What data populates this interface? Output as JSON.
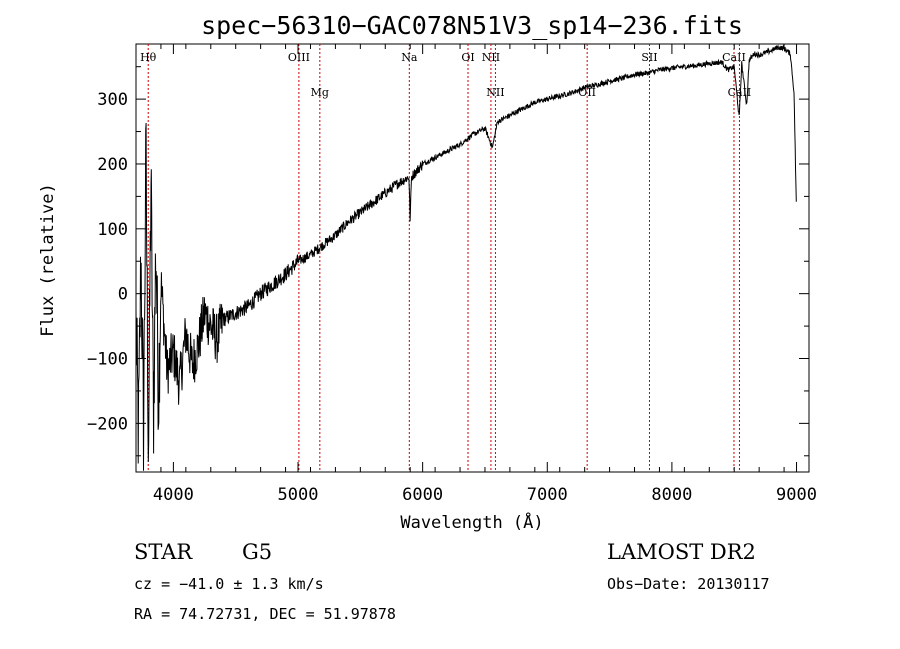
{
  "chart_data": {
    "type": "line",
    "title": "spec−56310−GAC078N51V3_sp14−236.fits",
    "xlabel": "Wavelength (Å)",
    "ylabel": "Flux (relative)",
    "xlim": [
      3700,
      9100
    ],
    "ylim": [
      -275,
      385
    ],
    "x_ticks": [
      4000,
      5000,
      6000,
      7000,
      8000,
      9000
    ],
    "y_ticks": [
      -200,
      -100,
      0,
      100,
      200,
      300
    ],
    "y_tick_labels": [
      "−200",
      "−100",
      "0",
      "100",
      "200",
      "300"
    ],
    "series": [
      {
        "color": "#000000",
        "x": [
          3700,
          3720,
          3740,
          3760,
          3780,
          3800,
          3820,
          3840,
          3860,
          3880,
          3900,
          3950,
          4000,
          4050,
          4100,
          4150,
          4200,
          4250,
          4300,
          4350,
          4400,
          4500,
          4600,
          4700,
          4800,
          4900,
          5000,
          5100,
          5200,
          5300,
          5400,
          5500,
          5600,
          5700,
          5800,
          5890,
          5900,
          5910,
          6000,
          6100,
          6200,
          6300,
          6400,
          6500,
          6560,
          6600,
          6700,
          6800,
          6900,
          7000,
          7100,
          7200,
          7300,
          7400,
          7500,
          7600,
          7700,
          7800,
          7900,
          8000,
          8100,
          8200,
          8300,
          8400,
          8450,
          8500,
          8540,
          8560,
          8600,
          8620,
          8660,
          8700,
          8800,
          8850,
          8900,
          8950,
          8980,
          9000
        ],
        "y": [
          -50,
          -220,
          60,
          -210,
          220,
          -250,
          180,
          -190,
          80,
          -160,
          20,
          -120,
          -90,
          -140,
          -60,
          -110,
          -80,
          -30,
          -50,
          -70,
          -40,
          -30,
          -20,
          0,
          15,
          30,
          50,
          60,
          75,
          90,
          110,
          125,
          140,
          155,
          170,
          180,
          110,
          180,
          200,
          210,
          220,
          230,
          245,
          255,
          225,
          265,
          275,
          285,
          295,
          300,
          305,
          310,
          318,
          322,
          328,
          332,
          338,
          340,
          345,
          348,
          350,
          352,
          355,
          357,
          345,
          350,
          270,
          355,
          290,
          360,
          370,
          368,
          375,
          380,
          378,
          370,
          310,
          120
        ]
      }
    ],
    "lines": [
      {
        "name": "Hθ",
        "x": 3798,
        "row": 0
      },
      {
        "name": "OIII",
        "x": 5007,
        "row": 0
      },
      {
        "name": "Mg",
        "x": 5175,
        "row": 1
      },
      {
        "name": "Na",
        "x": 5893,
        "row": 0
      },
      {
        "name": "OI",
        "x": 6364,
        "row": 0
      },
      {
        "name": "NII",
        "x": 6548,
        "row": 0
      },
      {
        "name": "NII",
        "x": 6584,
        "row": 1
      },
      {
        "name": "OII",
        "x": 7320,
        "row": 1
      },
      {
        "name": "SII",
        "x": 7820,
        "row": 0
      },
      {
        "name": "CaII",
        "x": 8498,
        "row": 0
      },
      {
        "name": "CaII",
        "x": 8542,
        "row": 1
      }
    ],
    "line_color": "#cc0000"
  },
  "info": {
    "object_class": "STAR",
    "subclass": "G5",
    "survey": "LAMOST DR2",
    "redshift": "cz = −41.0 ± 1.3 km/s",
    "obs_date": "Obs−Date: 20130117",
    "coords": "RA =  74.72731, DEC =  51.97878"
  }
}
